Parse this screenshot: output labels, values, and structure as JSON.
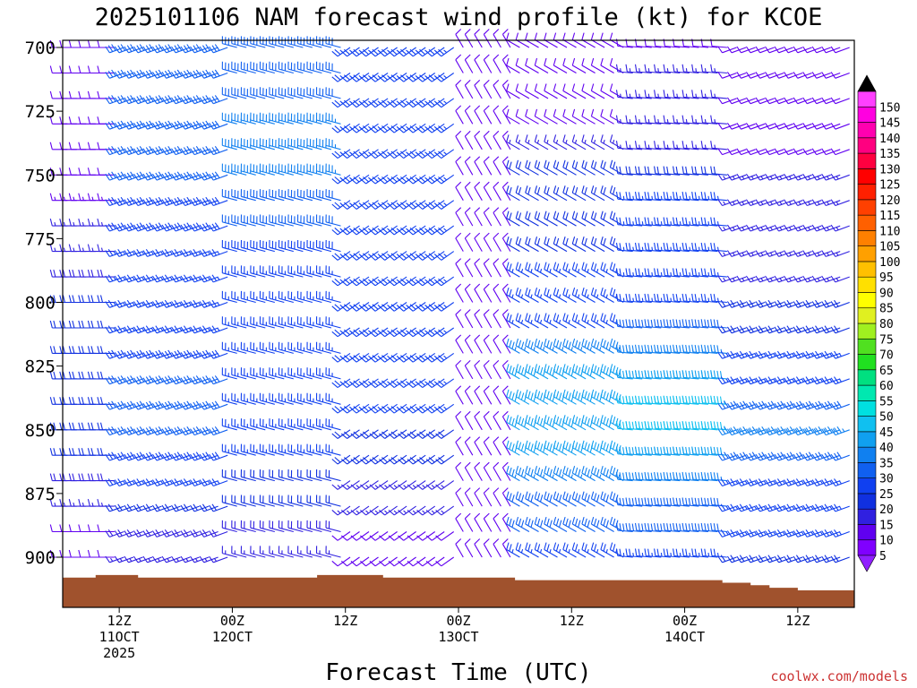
{
  "chart_data": {
    "type": "wind-barb time-height profile",
    "title": "2025101106 NAM forecast wind profile (kt) for KCOE",
    "xlabel": "Forecast Time (UTC)",
    "credit": "coolwx.com/models",
    "y_axis": {
      "quantity": "pressure (mb)",
      "reversed": true,
      "range": [
        700,
        920
      ],
      "ticks": [
        "700",
        "725",
        "750",
        "775",
        "800",
        "825",
        "850",
        "875",
        "900"
      ]
    },
    "x_axis": {
      "range_hours_since_start": [
        0,
        84
      ],
      "ticks": [
        {
          "hour": 6,
          "lines": [
            "12Z",
            "11OCT",
            "2025"
          ]
        },
        {
          "hour": 18,
          "lines": [
            "00Z",
            "12OCT"
          ]
        },
        {
          "hour": 30,
          "lines": [
            "12Z"
          ]
        },
        {
          "hour": 42,
          "lines": [
            "00Z",
            "13OCT"
          ]
        },
        {
          "hour": 54,
          "lines": [
            "12Z"
          ]
        },
        {
          "hour": 66,
          "lines": [
            "00Z",
            "14OCT"
          ]
        },
        {
          "hour": 78,
          "lines": [
            "12Z"
          ]
        }
      ]
    },
    "colorbar": {
      "unit": "kt",
      "labels": [
        "5",
        "10",
        "15",
        "20",
        "25",
        "30",
        "35",
        "40",
        "45",
        "50",
        "55",
        "60",
        "65",
        "70",
        "75",
        "80",
        "85",
        "90",
        "95",
        "100",
        "105",
        "110",
        "115",
        "120",
        "125",
        "130",
        "135",
        "140",
        "145",
        "150"
      ],
      "colors": [
        "#8000ff",
        "#6000f0",
        "#3020e0",
        "#1030e0",
        "#1040f0",
        "#1060f0",
        "#1080f0",
        "#10a0f0",
        "#10c0f0",
        "#00e0e0",
        "#00e8b0",
        "#00e080",
        "#20e020",
        "#50e020",
        "#a0f020",
        "#e0f020",
        "#ffff00",
        "#ffe000",
        "#ffc000",
        "#ffa000",
        "#ff8000",
        "#ff6000",
        "#ff4000",
        "#ff2000",
        "#ff0000",
        "#ff0040",
        "#ff0080",
        "#ff00b0",
        "#ff00e0",
        "#ff40ff"
      ],
      "below_color": "#9020ff",
      "above_color": "#000000"
    },
    "surface_color": "#a0522d",
    "surface_pressure_mb": [
      [
        0,
        908
      ],
      [
        3.5,
        907
      ],
      [
        8,
        908
      ],
      [
        18,
        908
      ],
      [
        27,
        907
      ],
      [
        34,
        908
      ],
      [
        43,
        908
      ],
      [
        48,
        909
      ],
      [
        60,
        909
      ],
      [
        67,
        909
      ],
      [
        70,
        910
      ],
      [
        73,
        911
      ],
      [
        75,
        912
      ],
      [
        78,
        913
      ],
      [
        84,
        913
      ]
    ],
    "wind": {
      "time_step_hours": 1,
      "pressure_levels_mb": [
        700,
        710,
        720,
        730,
        740,
        750,
        760,
        770,
        780,
        790,
        800,
        810,
        820,
        830,
        840,
        850,
        860,
        870,
        880,
        890,
        900
      ],
      "segments": [
        {
          "hours": [
            0,
            6
          ],
          "direction_deg": 270,
          "speed_kt": [
            10,
            10,
            10,
            12,
            12,
            12,
            14,
            15,
            15,
            18,
            20,
            22,
            22,
            22,
            22,
            22,
            20,
            18,
            15,
            12,
            10
          ]
        },
        {
          "hours": [
            6,
            18
          ],
          "direction_deg": 250,
          "speed_kt": [
            30,
            30,
            30,
            30,
            30,
            30,
            28,
            28,
            25,
            25,
            25,
            25,
            28,
            30,
            30,
            30,
            28,
            25,
            20,
            18,
            15
          ]
        },
        {
          "hours": [
            18,
            30
          ],
          "direction_deg": 285,
          "speed_kt": [
            30,
            30,
            30,
            35,
            35,
            35,
            30,
            30,
            28,
            25,
            25,
            25,
            25,
            25,
            25,
            25,
            25,
            22,
            20,
            18,
            15
          ]
        },
        {
          "hours": [
            30,
            42
          ],
          "direction_deg": 235,
          "speed_kt": [
            25,
            25,
            25,
            25,
            25,
            25,
            25,
            25,
            25,
            25,
            25,
            25,
            25,
            25,
            25,
            20,
            20,
            15,
            15,
            12,
            10
          ]
        },
        {
          "hours": [
            42,
            48
          ],
          "direction_deg": 330,
          "speed_kt": [
            10,
            10,
            10,
            10,
            10,
            10,
            10,
            10,
            10,
            10,
            10,
            10,
            10,
            10,
            10,
            10,
            10,
            10,
            10,
            10,
            10
          ]
        },
        {
          "hours": [
            48,
            60
          ],
          "direction_deg": 300,
          "speed_kt": [
            10,
            10,
            10,
            10,
            15,
            20,
            20,
            22,
            22,
            25,
            25,
            25,
            35,
            40,
            40,
            40,
            40,
            35,
            30,
            30,
            25
          ]
        },
        {
          "hours": [
            60,
            71
          ],
          "direction_deg": 275,
          "speed_kt": [
            12,
            15,
            15,
            15,
            15,
            20,
            25,
            25,
            25,
            25,
            25,
            30,
            35,
            40,
            45,
            45,
            40,
            35,
            30,
            30,
            25
          ]
        },
        {
          "hours": [
            71,
            84
          ],
          "direction_deg": 250,
          "speed_kt": [
            10,
            10,
            10,
            12,
            12,
            15,
            15,
            15,
            15,
            15,
            20,
            20,
            25,
            25,
            30,
            35,
            30,
            25,
            25,
            25,
            20
          ]
        }
      ]
    }
  }
}
